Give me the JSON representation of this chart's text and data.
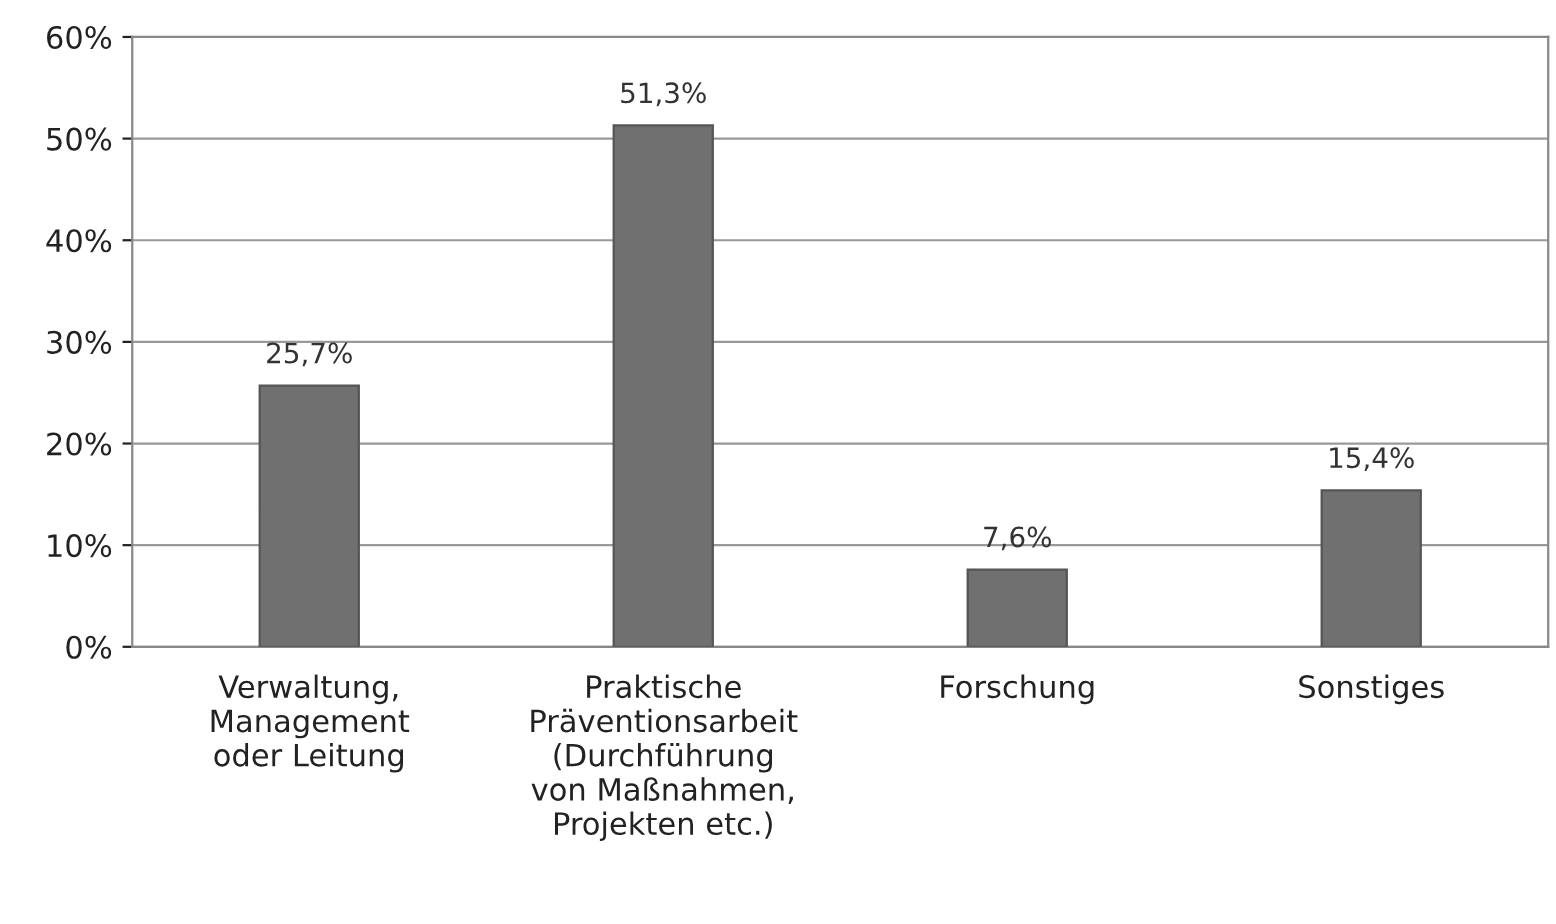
{
  "chart_data": {
    "type": "bar",
    "categories": [
      "Verwaltung,\nManagement\noder Leitung",
      "Praktische\nPräventionsarbeit\n(Durchführung\nvon Maßnahmen,\nProjekten etc.)",
      "Forschung",
      "Sonstiges"
    ],
    "values": [
      25.7,
      51.3,
      7.6,
      15.4
    ],
    "value_labels": [
      "25,7%",
      "51,3%",
      "7,6%",
      "15,4%"
    ],
    "color": "#707070",
    "ylim": [
      0,
      60
    ],
    "yticks": [
      {
        "value": 0,
        "label": "0%"
      },
      {
        "value": 10,
        "label": "10%"
      },
      {
        "value": 20,
        "label": "20%"
      },
      {
        "value": 30,
        "label": "30%"
      },
      {
        "value": 40,
        "label": "40%"
      },
      {
        "value": 50,
        "label": "50%"
      },
      {
        "value": 60,
        "label": "60%"
      }
    ],
    "grid": "y"
  }
}
